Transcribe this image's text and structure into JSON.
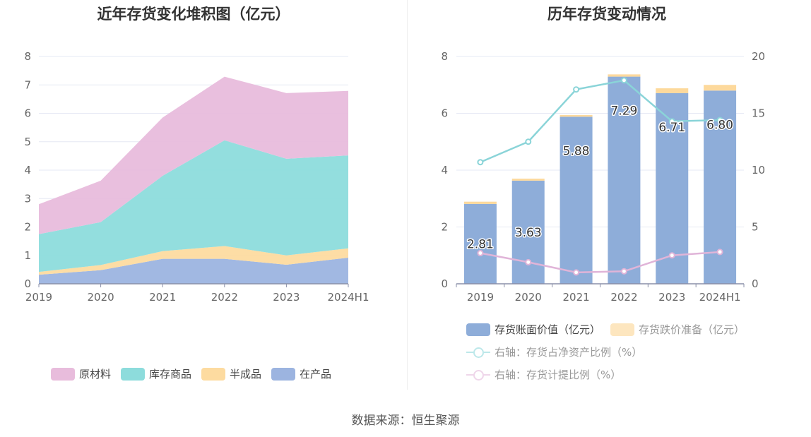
{
  "titles": {
    "left": "近年存货变化堆积图（亿元）",
    "right": "历年存货变动情况"
  },
  "source": "数据来源：恒生聚源",
  "colors": {
    "raw": "#e8bcdc",
    "stock": "#8ddcdc",
    "semi": "#fddba0",
    "wip": "#9cb4e0",
    "bar": "#8eadd9",
    "reserve": "#fde6bf",
    "line_net": "#8ad4d8",
    "line_reserve": "#e0b4d8",
    "grid": "#e6e9f4",
    "axis_text": "#666666"
  },
  "chart_data": [
    {
      "type": "area",
      "stacked": true,
      "title": "近年存货变化堆积图（亿元）",
      "categories": [
        "2019",
        "2020",
        "2021",
        "2022",
        "2023",
        "2024H1"
      ],
      "ylim": [
        0,
        8
      ],
      "yticks": [
        "0",
        "1",
        "2",
        "3",
        "4",
        "5",
        "6",
        "7",
        "8"
      ],
      "series": [
        {
          "name": "在产品",
          "color_key": "wip",
          "values": [
            0.32,
            0.48,
            0.88,
            0.88,
            0.67,
            0.92
          ]
        },
        {
          "name": "半成品",
          "color_key": "semi",
          "values": [
            0.1,
            0.18,
            0.27,
            0.45,
            0.33,
            0.33
          ]
        },
        {
          "name": "库存商品",
          "color_key": "stock",
          "values": [
            1.33,
            1.51,
            2.65,
            3.72,
            3.4,
            3.27
          ]
        },
        {
          "name": "原材料",
          "color_key": "raw",
          "values": [
            1.05,
            1.46,
            2.05,
            2.24,
            2.31,
            2.27
          ]
        }
      ],
      "legend": [
        "原材料",
        "库存商品",
        "半成品",
        "在产品"
      ],
      "legend_position": "bottom"
    },
    {
      "type": "bar",
      "stacked": true,
      "title": "历年存货变动情况",
      "categories": [
        "2019",
        "2020",
        "2021",
        "2022",
        "2023",
        "2024H1"
      ],
      "ylim": [
        0,
        8
      ],
      "yticks": [
        "0",
        "2",
        "4",
        "6",
        "8"
      ],
      "y2lim": [
        0,
        20
      ],
      "y2ticks": [
        "0",
        "5",
        "10",
        "15",
        "20"
      ],
      "series": [
        {
          "name": "存货账面价值（亿元）",
          "color_key": "bar",
          "values": [
            2.81,
            3.63,
            5.88,
            7.29,
            6.71,
            6.8
          ],
          "labels": [
            "2.81",
            "3.63",
            "5.88",
            "7.29",
            "6.71",
            "6.80"
          ]
        },
        {
          "name": "存货跌价准备（亿元）",
          "color_key": "reserve",
          "values": [
            0.08,
            0.07,
            0.06,
            0.08,
            0.17,
            0.2
          ]
        }
      ],
      "lines": [
        {
          "name": "右轴：存货占净资产比例（%）",
          "color_key": "line_net",
          "axis": "right",
          "values": [
            10.7,
            12.5,
            17.1,
            17.9,
            14.3,
            14.4
          ]
        },
        {
          "name": "右轴：存货计提比例（%）",
          "color_key": "line_reserve",
          "axis": "right",
          "values": [
            2.7,
            1.9,
            1.0,
            1.1,
            2.5,
            2.8
          ]
        }
      ],
      "legend_position": "bottom"
    }
  ]
}
